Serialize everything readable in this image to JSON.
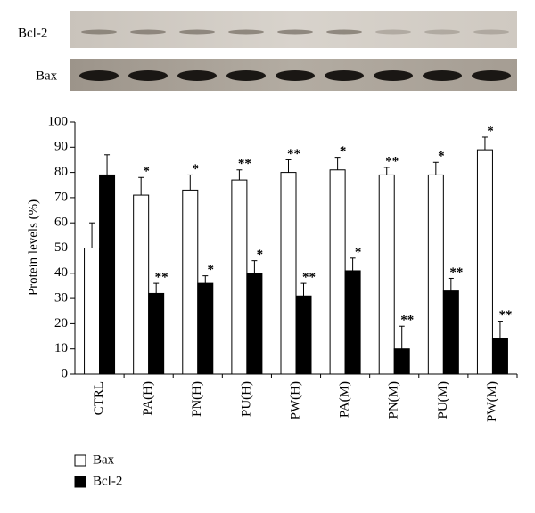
{
  "blot_labels": [
    "Bcl-2",
    "Bax"
  ],
  "chart_data": {
    "type": "bar",
    "y_label": "Protein levels (%)",
    "categories": [
      "CTRL",
      "PA(H)",
      "PN(H)",
      "PU(H)",
      "PW(H)",
      "PA(M)",
      "PN(M)",
      "PU(M)",
      "PW(M)"
    ],
    "series": [
      {
        "name": "Bax",
        "color": "#ffffff",
        "values": [
          50,
          71,
          73,
          77,
          80,
          81,
          79,
          79,
          89
        ],
        "errors": [
          10,
          7,
          6,
          4,
          5,
          5,
          3,
          5,
          5
        ],
        "annotations": [
          null,
          "*",
          "*",
          "**",
          "**",
          "*",
          "**",
          "*",
          "*"
        ]
      },
      {
        "name": "Bcl-2",
        "color": "#000000",
        "values": [
          79,
          32,
          36,
          40,
          31,
          41,
          10,
          33,
          14
        ],
        "errors": [
          8,
          4,
          3,
          5,
          5,
          5,
          9,
          5,
          7
        ],
        "annotations": [
          null,
          "**",
          "*",
          "*",
          "**",
          "*",
          "**",
          "**",
          "**"
        ]
      }
    ],
    "ylim": [
      0,
      100
    ],
    "yticks": [
      0,
      10,
      20,
      30,
      40,
      50,
      60,
      70,
      80,
      90,
      100
    ],
    "grid": false,
    "legend": "bottom-left"
  }
}
